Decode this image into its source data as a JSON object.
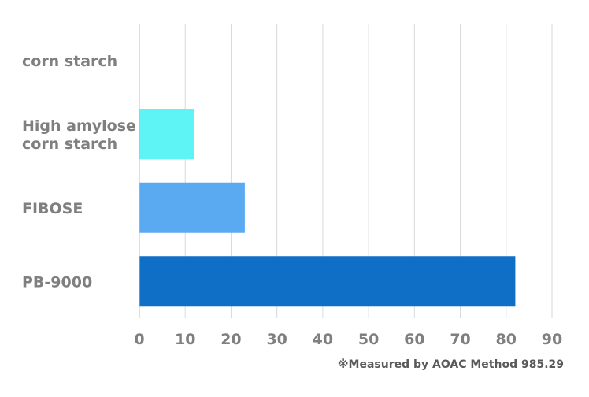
{
  "chart_data": {
    "type": "bar",
    "orientation": "horizontal",
    "categories": [
      "corn starch",
      "High amylose\ncorn starch",
      "FIBOSE",
      "PB-9000"
    ],
    "values": [
      0,
      12,
      23,
      82
    ],
    "colors": [
      "#5ef3f5",
      "#5ef3f5",
      "#5aaaf2",
      "#0f6fc6"
    ],
    "xlim": [
      0,
      90
    ],
    "xticks": [
      0,
      10,
      20,
      30,
      40,
      50,
      60,
      70,
      80,
      90
    ],
    "grid": "vertical"
  },
  "footnote": "※Measured by AOAC Method 985.29"
}
